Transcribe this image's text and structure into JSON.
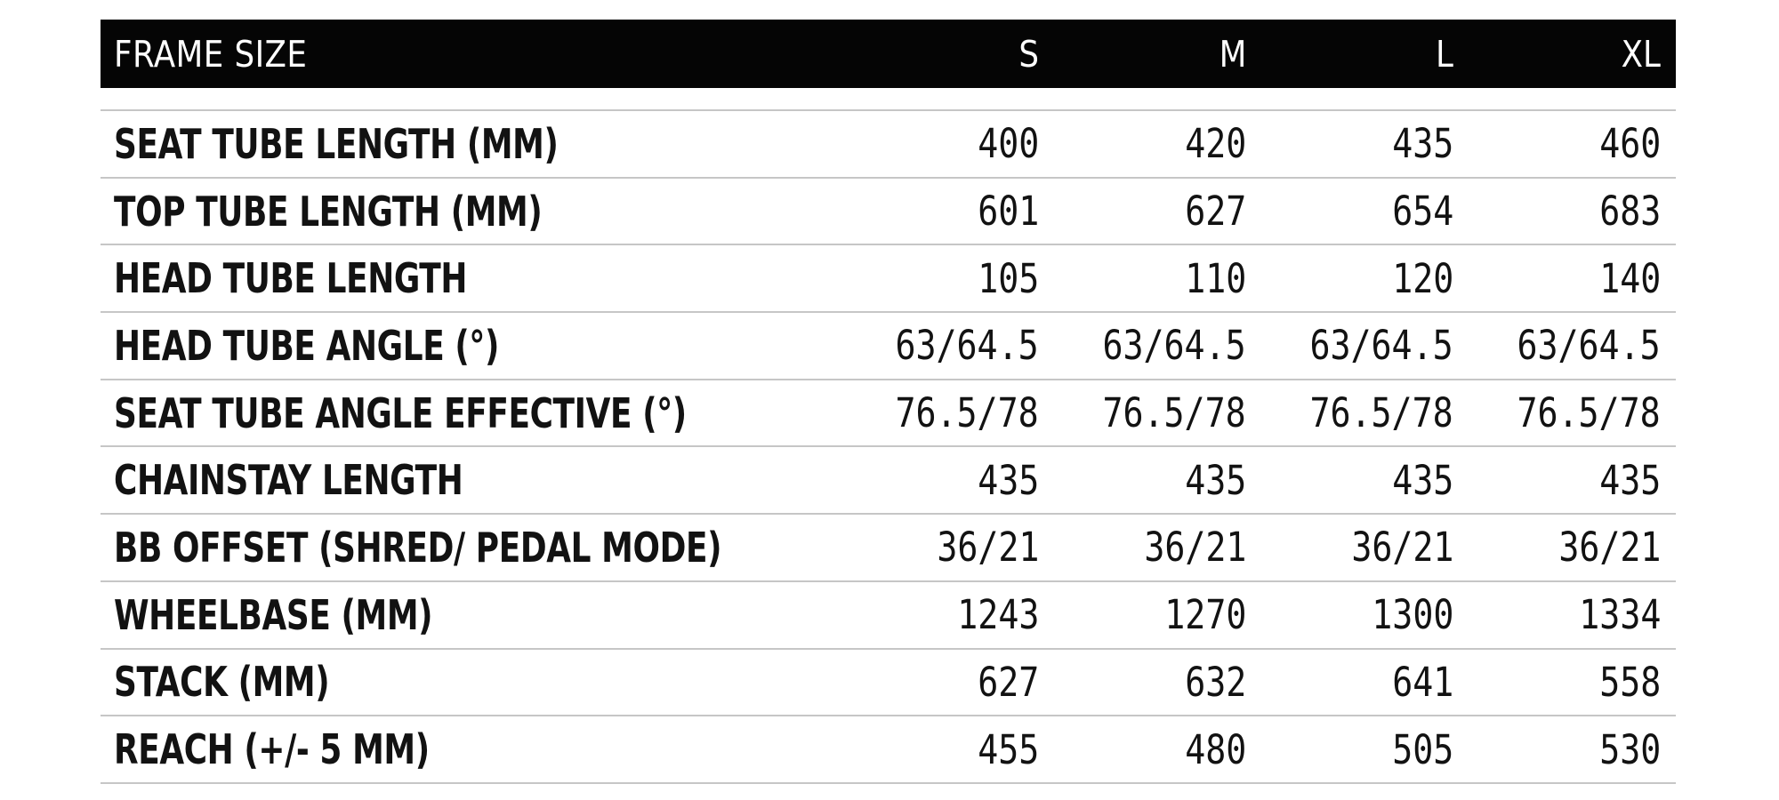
{
  "chart_data": {
    "type": "table",
    "header_label": "FRAME SIZE",
    "columns": [
      "S",
      "M",
      "L",
      "XL"
    ],
    "rows": [
      {
        "label": "SEAT TUBE LENGTH (MM)",
        "values": [
          "400",
          "420",
          "435",
          "460"
        ]
      },
      {
        "label": "TOP TUBE LENGTH (MM)",
        "values": [
          "601",
          "627",
          "654",
          "683"
        ]
      },
      {
        "label": "HEAD TUBE LENGTH",
        "values": [
          "105",
          "110",
          "120",
          "140"
        ]
      },
      {
        "label": "HEAD TUBE ANGLE (°)",
        "values": [
          "63/64.5",
          "63/64.5",
          "63/64.5",
          "63/64.5"
        ]
      },
      {
        "label": "SEAT TUBE ANGLE EFFECTIVE (°)",
        "values": [
          "76.5/78",
          "76.5/78",
          "76.5/78",
          "76.5/78"
        ]
      },
      {
        "label": "CHAINSTAY LENGTH",
        "values": [
          "435",
          "435",
          "435",
          "435"
        ]
      },
      {
        "label": "BB OFFSET (SHRED/ PEDAL MODE)",
        "values": [
          "36/21",
          "36/21",
          "36/21",
          "36/21"
        ]
      },
      {
        "label": "WHEELBASE (MM)",
        "values": [
          "1243",
          "1270",
          "1300",
          "1334"
        ]
      },
      {
        "label": "STACK (MM)",
        "values": [
          "627",
          "632",
          "641",
          "558"
        ]
      },
      {
        "label": "REACH (+/- 5 MM)",
        "values": [
          "455",
          "480",
          "505",
          "530"
        ]
      }
    ],
    "layout": {
      "header_position": "top",
      "value_alignment": "right",
      "grid": "horizontal-dividers"
    }
  },
  "colors": {
    "background": "#ffffff",
    "header_bg": "#050505",
    "header_text": "#ffffff",
    "row_text": "#121212",
    "divider": "#c6c6c6"
  }
}
